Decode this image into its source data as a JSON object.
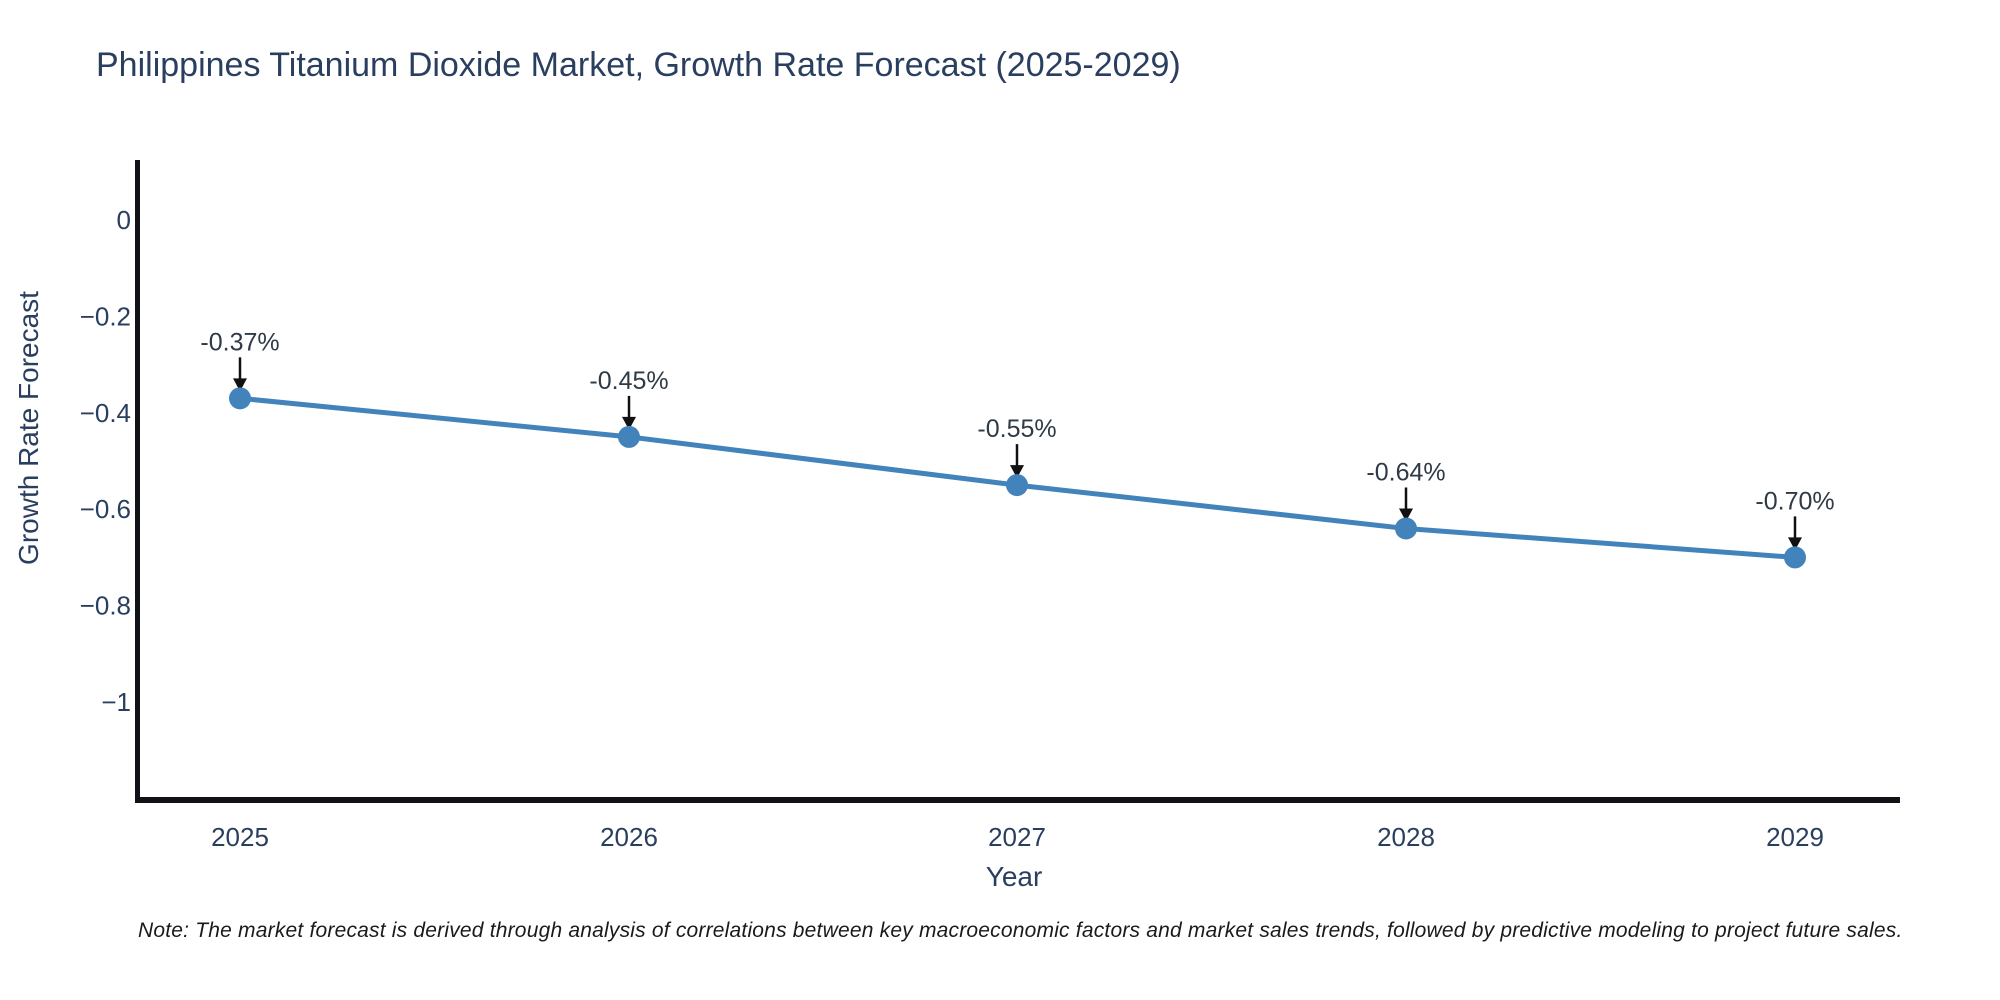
{
  "note": {
    "text": "Note: The market forecast is derived through analysis of correlations between key macroeconomic factors and market sales trends, followed by predictive modeling to project future sales."
  },
  "chart_data": {
    "type": "line",
    "title": "Philippines Titanium Dioxide Market, Growth Rate Forecast (2025-2029)",
    "xlabel": "Year",
    "ylabel": "Growth Rate Forecast",
    "categories": [
      "2025",
      "2026",
      "2027",
      "2028",
      "2029"
    ],
    "series": [
      {
        "name": "Growth Rate Forecast",
        "values": [
          -0.37,
          -0.45,
          -0.55,
          -0.64,
          -0.7
        ]
      }
    ],
    "point_labels": [
      "-0.37%",
      "-0.45%",
      "-0.55%",
      "-0.64%",
      "-0.70%"
    ],
    "yticks": {
      "values": [
        0,
        -0.2,
        -0.4,
        -0.6,
        -0.8,
        -1
      ],
      "labels": [
        "0",
        "−0.2",
        "−0.4",
        "−0.6",
        "−0.8",
        "−1"
      ]
    },
    "ylim": [
      -1.2,
      0.125
    ],
    "grid": false,
    "legend_position": "none",
    "annotation_arrows": true,
    "marker_style": "circle"
  },
  "colors": {
    "line": "#4383bb",
    "marker": "#4383bb",
    "axis_spine": "#111118",
    "tick_label": "#2a3f5f",
    "axis_title": "#2a3f5f",
    "chart_title": "#2a3f5f",
    "annotation_text": "#2f3a47",
    "arrow": "#111111",
    "note_text": "#1a1a1a",
    "background": "#ffffff"
  }
}
